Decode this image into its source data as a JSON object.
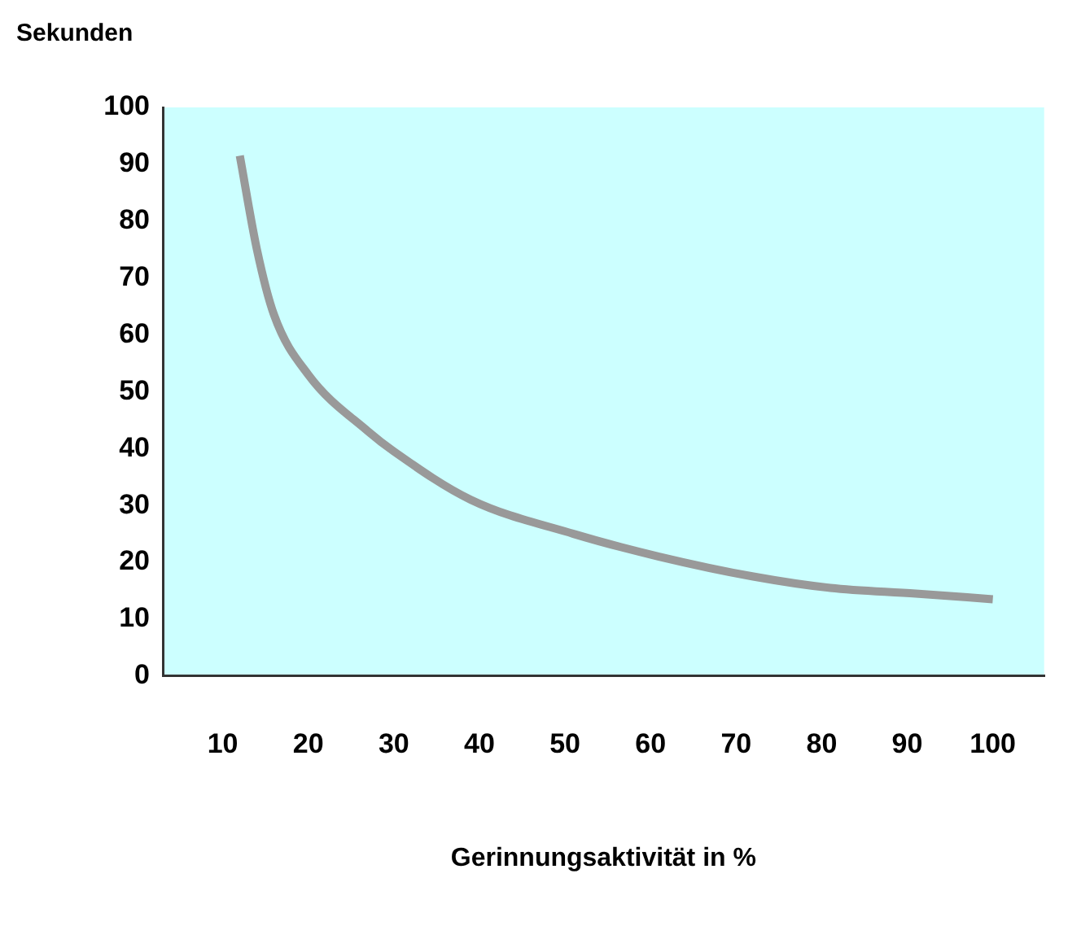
{
  "chart_data": {
    "type": "line",
    "ylabel": "Sekunden",
    "xlabel": "Gerinnungsaktivität in %",
    "x": [
      12,
      14,
      16,
      20,
      27,
      30,
      39,
      51,
      61,
      72,
      81,
      91,
      100
    ],
    "series": [
      {
        "color": "#999999",
        "values": [
          91.5,
          75,
          63.5,
          53,
          43,
          39.5,
          31,
          25,
          21,
          17.5,
          15.5,
          14.5,
          13.5
        ]
      }
    ],
    "xlim": [
      3,
      106
    ],
    "xticks": [
      10,
      20,
      30,
      40,
      50,
      60,
      70,
      80,
      90,
      100
    ],
    "ylim": [
      0,
      100
    ],
    "yticks": [
      0,
      10,
      20,
      30,
      40,
      50,
      60,
      70,
      80,
      90,
      100
    ],
    "grid": false,
    "legend": false,
    "marker": "none",
    "line_style": "solid"
  }
}
